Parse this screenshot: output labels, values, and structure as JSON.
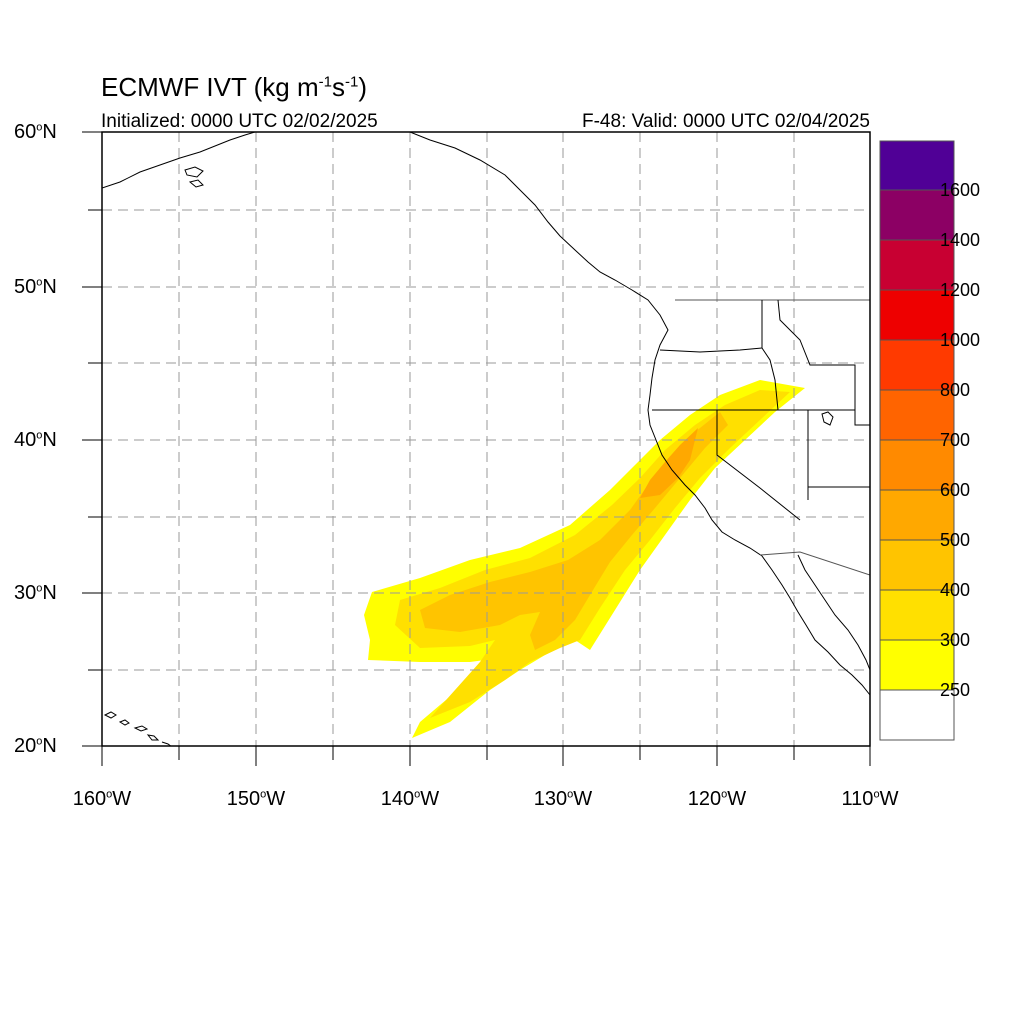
{
  "header": {
    "title_main": "ECMWF IVT (kg m",
    "title_exp1": "-1",
    "title_mid": "s",
    "title_exp2": "-1",
    "title_end": ")",
    "initialized": "Initialized: 0000 UTC 02/02/2025",
    "valid": "F-48: Valid: 0000 UTC 02/04/2025"
  },
  "map": {
    "lat_labels": [
      {
        "num": "60",
        "hemi": "N",
        "lat": 60
      },
      {
        "num": "50",
        "hemi": "N",
        "lat": 50
      },
      {
        "num": "40",
        "hemi": "N",
        "lat": 40
      },
      {
        "num": "30",
        "hemi": "N",
        "lat": 30
      },
      {
        "num": "20",
        "hemi": "N",
        "lat": 20
      }
    ],
    "lon_labels": [
      {
        "num": "160",
        "hemi": "W",
        "lon": -160
      },
      {
        "num": "150",
        "hemi": "W",
        "lon": -150
      },
      {
        "num": "140",
        "hemi": "W",
        "lon": -140
      },
      {
        "num": "130",
        "hemi": "W",
        "lon": -130
      },
      {
        "num": "120",
        "hemi": "W",
        "lon": -120
      },
      {
        "num": "110",
        "hemi": "W",
        "lon": -110
      }
    ],
    "extent": {
      "lon_min": -160,
      "lon_max": -110,
      "lat_min": 20,
      "lat_max": 60
    },
    "grid": "dashed every 5 degrees",
    "features": [
      "coastlines",
      "US state boundaries",
      "integrated vapor transport shading"
    ]
  },
  "colorbar": {
    "levels": [
      "250",
      "300",
      "400",
      "500",
      "600",
      "700",
      "800",
      "1000",
      "1200",
      "1400",
      "1600"
    ],
    "colors": [
      "#ffffff",
      "#ffff00",
      "#ffe000",
      "#ffc400",
      "#ffa800",
      "#ff8a00",
      "#ff6400",
      "#ff3a00",
      "#ee0000",
      "#c80032",
      "#8c0064",
      "#500096"
    ]
  }
}
